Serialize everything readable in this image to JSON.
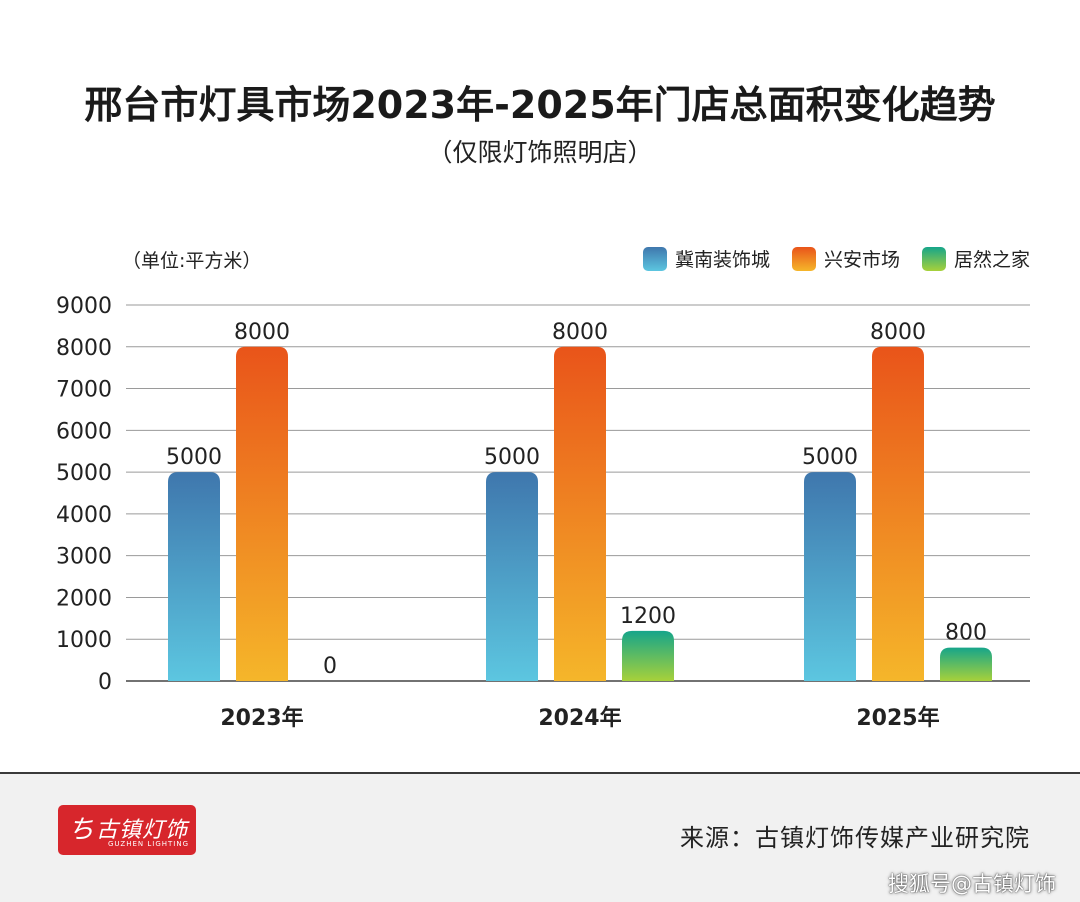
{
  "title": "邢台市灯具市场2023年-2025年门店总面积变化趋势",
  "subtitle": "（仅限灯饰照明店）",
  "unit_label": "（单位:平方米）",
  "legend": [
    {
      "label": "冀南装饰城",
      "color_top": "#3f77ad",
      "color_bottom": "#5cc6e0"
    },
    {
      "label": "兴安市场",
      "color_top": "#e9541a",
      "color_bottom": "#f5b62a"
    },
    {
      "label": "居然之家",
      "color_top": "#16a58a",
      "color_bottom": "#a7d13a"
    }
  ],
  "chart_data": {
    "type": "bar",
    "categories": [
      "2023年",
      "2024年",
      "2025年"
    ],
    "series": [
      {
        "name": "冀南装饰城",
        "values": [
          5000,
          5000,
          5000
        ]
      },
      {
        "name": "兴安市场",
        "values": [
          8000,
          8000,
          8000
        ]
      },
      {
        "name": "居然之家",
        "values": [
          0,
          1200,
          800
        ]
      }
    ],
    "ylim": [
      0,
      9000
    ],
    "yticks": [
      "0",
      "1000",
      "2000",
      "3000",
      "4000",
      "5000",
      "6000",
      "7000",
      "8000",
      "9000"
    ],
    "grid": true,
    "legend_position": "top-right"
  },
  "footer": {
    "logo_text": "古镇灯饰",
    "logo_sub": "GUZHEN LIGHTING",
    "source": "来源：古镇灯饰传媒产业研究院",
    "watermark": "搜狐号@古镇灯饰"
  }
}
